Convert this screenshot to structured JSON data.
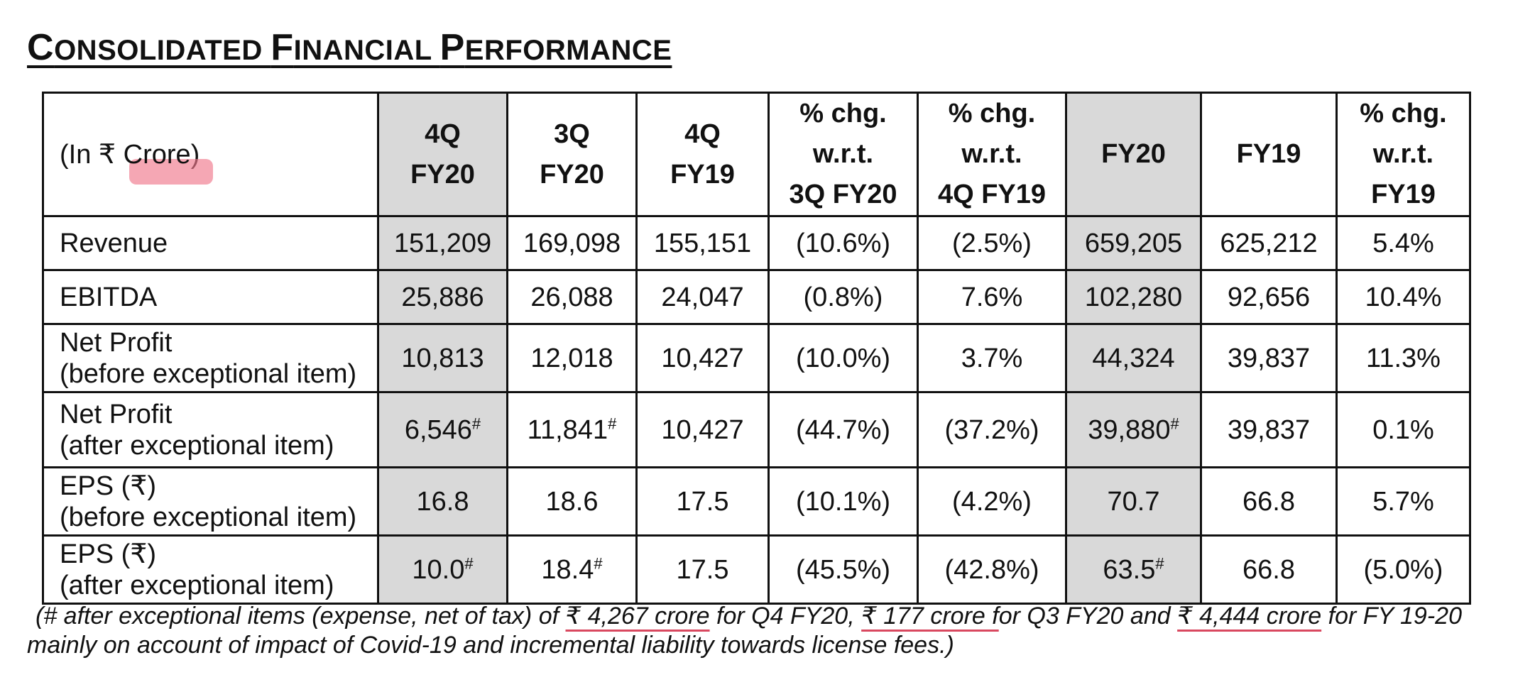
{
  "title": {
    "first": "C",
    "rest1": "ONSOLIDATED ",
    "f": "F",
    "rest2": "INANCIAL ",
    "p": "P",
    "rest3": "ERFORMANCE"
  },
  "table": {
    "unit_prefix": "(In ₹ ",
    "unit_highlight": "Crore",
    "unit_suffix": ")",
    "headers": [
      {
        "l1": "4Q",
        "l2": "FY20",
        "l3": ""
      },
      {
        "l1": "3Q",
        "l2": "FY20",
        "l3": ""
      },
      {
        "l1": "4Q",
        "l2": "FY19",
        "l3": ""
      },
      {
        "l1": "% chg.",
        "l2": "w.r.t.",
        "l3": "3Q FY20"
      },
      {
        "l1": "% chg.",
        "l2": "w.r.t.",
        "l3": "4Q FY19"
      },
      {
        "l1": "FY20",
        "l2": "",
        "l3": ""
      },
      {
        "l1": "FY19",
        "l2": "",
        "l3": ""
      },
      {
        "l1": "% chg.",
        "l2": "w.r.t.",
        "l3": "FY19"
      }
    ],
    "rows": [
      {
        "l1": "Revenue",
        "l2": "",
        "cells": [
          {
            "v": "151,209",
            "s": ""
          },
          {
            "v": "169,098",
            "s": ""
          },
          {
            "v": "155,151",
            "s": ""
          },
          {
            "v": "(10.6%)",
            "s": ""
          },
          {
            "v": "(2.5%)",
            "s": ""
          },
          {
            "v": "659,205",
            "s": ""
          },
          {
            "v": "625,212",
            "s": ""
          },
          {
            "v": "5.4%",
            "s": ""
          }
        ]
      },
      {
        "l1": "EBITDA",
        "l2": "",
        "cells": [
          {
            "v": "25,886",
            "s": ""
          },
          {
            "v": "26,088",
            "s": ""
          },
          {
            "v": "24,047",
            "s": ""
          },
          {
            "v": "(0.8%)",
            "s": ""
          },
          {
            "v": "7.6%",
            "s": ""
          },
          {
            "v": "102,280",
            "s": ""
          },
          {
            "v": "92,656",
            "s": ""
          },
          {
            "v": "10.4%",
            "s": ""
          }
        ]
      },
      {
        "l1": "Net Profit",
        "l2": "(before exceptional item)",
        "cells": [
          {
            "v": "10,813",
            "s": ""
          },
          {
            "v": "12,018",
            "s": ""
          },
          {
            "v": "10,427",
            "s": ""
          },
          {
            "v": "(10.0%)",
            "s": ""
          },
          {
            "v": "3.7%",
            "s": ""
          },
          {
            "v": "44,324",
            "s": ""
          },
          {
            "v": "39,837",
            "s": ""
          },
          {
            "v": "11.3%",
            "s": ""
          }
        ]
      },
      {
        "l1": "Net Profit",
        "l2": "(after exceptional item)",
        "cells": [
          {
            "v": "6,546",
            "s": "#"
          },
          {
            "v": "11,841",
            "s": "#"
          },
          {
            "v": "10,427",
            "s": ""
          },
          {
            "v": "(44.7%)",
            "s": ""
          },
          {
            "v": "(37.2%)",
            "s": ""
          },
          {
            "v": "39,880",
            "s": "#"
          },
          {
            "v": "39,837",
            "s": ""
          },
          {
            "v": "0.1%",
            "s": ""
          }
        ]
      },
      {
        "l1": "EPS (₹)",
        "l2": "(before exceptional item)",
        "cells": [
          {
            "v": "16.8",
            "s": ""
          },
          {
            "v": "18.6",
            "s": ""
          },
          {
            "v": "17.5",
            "s": ""
          },
          {
            "v": "(10.1%)",
            "s": ""
          },
          {
            "v": "(4.2%)",
            "s": ""
          },
          {
            "v": "70.7",
            "s": ""
          },
          {
            "v": "66.8",
            "s": ""
          },
          {
            "v": "5.7%",
            "s": ""
          }
        ]
      },
      {
        "l1": "EPS (₹)",
        "l2": "(after exceptional item)",
        "cells": [
          {
            "v": "10.0",
            "s": "#"
          },
          {
            "v": "18.4",
            "s": "#"
          },
          {
            "v": "17.5",
            "s": ""
          },
          {
            "v": "(45.5%)",
            "s": ""
          },
          {
            "v": "(42.8%)",
            "s": ""
          },
          {
            "v": "63.5",
            "s": "#"
          },
          {
            "v": "66.8",
            "s": ""
          },
          {
            "v": "(5.0%)",
            "s": ""
          }
        ]
      }
    ]
  },
  "footnote": {
    "p1": "(# after exceptional items (expense, net of tax) of ",
    "u1": "₹ 4,267 crore",
    "p2": " for Q4 FY20, ",
    "u2": "₹ 177 crore f",
    "p3": "or Q3 FY20 and ",
    "u3": "₹ 4,444 crore",
    "p4": " for FY 19-20",
    "line2": "mainly on account of impact of Covid-19 and incremental liability towards license fees.)"
  },
  "colors": {
    "shade": "#d9d9d9",
    "highlight": "#f0788c",
    "underline": "#d9485f"
  }
}
